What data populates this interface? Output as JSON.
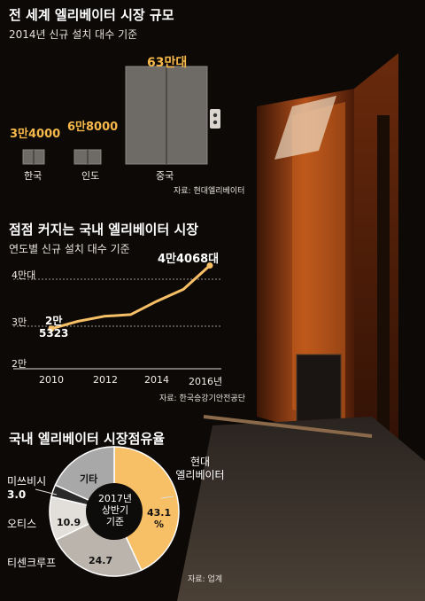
{
  "colors": {
    "accent": "#f7b84a",
    "elevator_door": "#6e6a66",
    "donut_hyundai": "#f7bf66",
    "donut_thyssen": "#bab4ac",
    "donut_otis": "#e2dfdb",
    "donut_mitsubishi": "#2a2a2a",
    "donut_other": "#a8a8a8"
  },
  "section1": {
    "title": "전 세계 엘리베이터 시장 규모",
    "subtitle": "2014년 신규 설치 대수 기준",
    "source": "자료: 현대엘리베이터"
  },
  "section2": {
    "title": "점점 커지는 국내 엘리베이터 시장",
    "subtitle": "연도별 신규 설치 대수 기준",
    "source": "자료: 한국승강기안전공단",
    "y_ticks": [
      "4만대",
      "3만",
      "2만"
    ],
    "x_ticks": [
      "2010",
      "2012",
      "2014",
      "2016년"
    ],
    "start_label_line1": "2만",
    "start_label_line2": "5323",
    "end_label": "4만4068대"
  },
  "section3": {
    "title": "국내 엘리베이터 시장점유율",
    "center_line1": "2017년",
    "center_line2": "상반기",
    "center_line3": "기준",
    "source": "자료: 업계",
    "labels": {
      "hyundai_name_line1": "현대",
      "hyundai_name_line2": "엘리베이터",
      "hyundai_value_line1": "43.1",
      "hyundai_value_line2": "%",
      "thyssen_name": "티센크루프",
      "thyssen_value": "24.7",
      "otis_name": "오티스",
      "otis_value": "10.9",
      "mitsubishi_name": "미쓰비시",
      "mitsubishi_value": "3.0",
      "other_name": "기타"
    }
  },
  "chart_data": [
    {
      "type": "bar",
      "title": "전 세계 엘리베이터 시장 규모",
      "subtitle": "2014년 신규 설치 대수 기준",
      "categories": [
        "한국",
        "인도",
        "중국"
      ],
      "values": [
        34000,
        68000,
        630000
      ],
      "value_labels": [
        "3만4000",
        "6만8000",
        "63만대"
      ]
    },
    {
      "type": "line",
      "title": "점점 커지는 국내 엘리베이터 시장",
      "subtitle": "연도별 신규 설치 대수 기준",
      "x": [
        2010,
        2011,
        2012,
        2013,
        2014,
        2015,
        2016
      ],
      "y": [
        25323,
        27500,
        29000,
        29500,
        33500,
        37000,
        44068
      ],
      "ylim": [
        20000,
        40000
      ],
      "xlim": [
        2010,
        2016
      ],
      "grid": true
    },
    {
      "type": "pie",
      "title": "국내 엘리베이터 시장점유율",
      "categories": [
        "현대엘리베이터",
        "티센크루프",
        "오티스",
        "미쓰비시",
        "기타"
      ],
      "values": [
        43.1,
        24.7,
        10.9,
        3.0,
        18.3
      ],
      "donut": true
    }
  ]
}
